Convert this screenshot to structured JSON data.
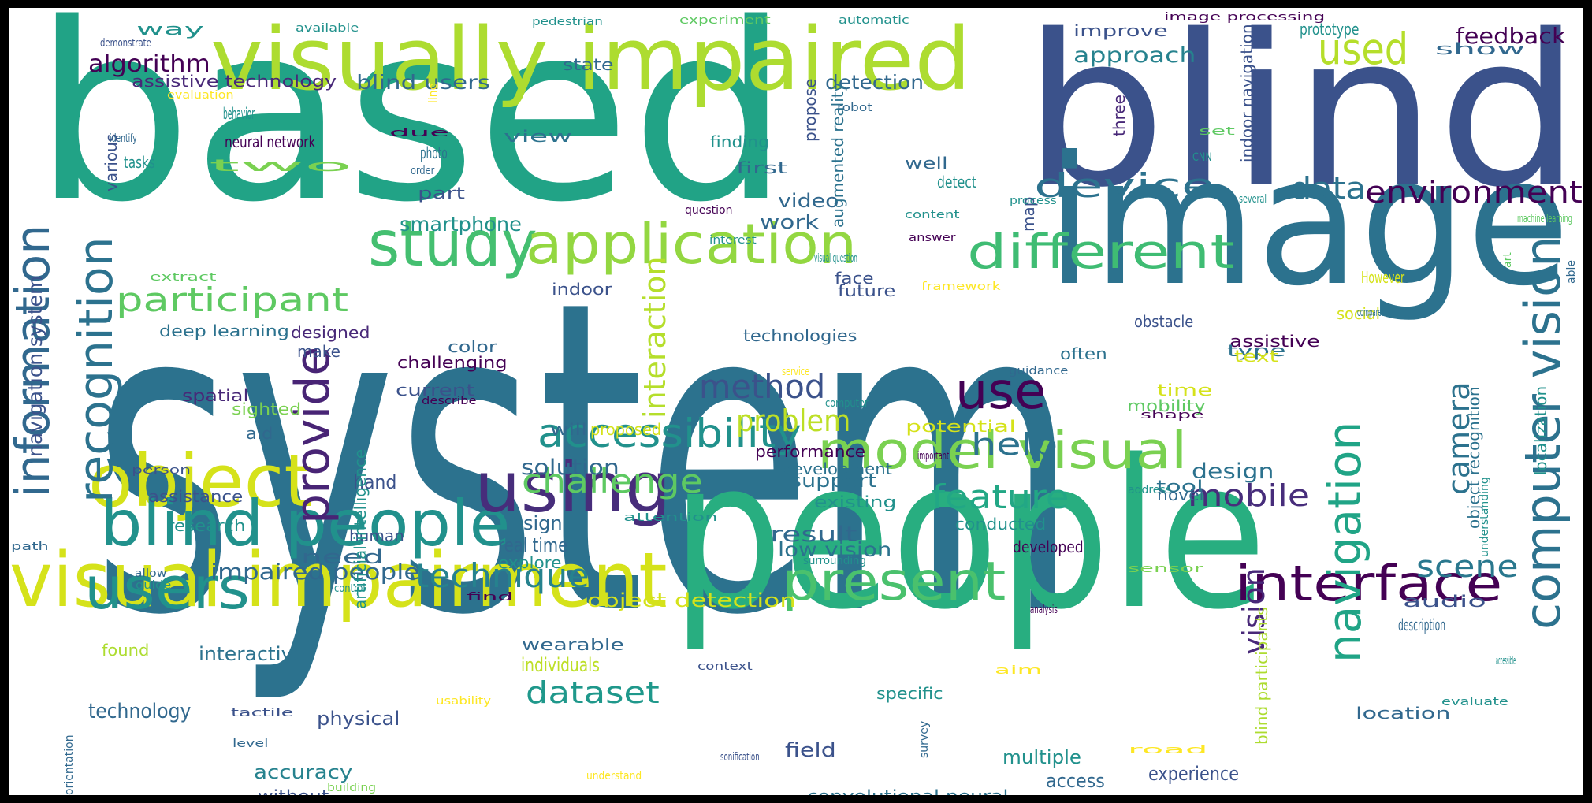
{
  "palette": [
    "#440154",
    "#472d7b",
    "#3b528b",
    "#2c728e",
    "#21918c",
    "#28ae80",
    "#5ec962",
    "#addc30",
    "#fde725"
  ],
  "words": [
    {
      "text": "system",
      "color": "#2c728e"
    },
    {
      "text": "based",
      "color": "#21a386"
    },
    {
      "text": "blind",
      "color": "#3b528b"
    },
    {
      "text": "people",
      "color": "#28ae80"
    },
    {
      "text": "image",
      "color": "#2c728e"
    },
    {
      "text": "visually impaired",
      "color": "#addc30"
    },
    {
      "text": "visual impairment",
      "color": "#d5e21a"
    },
    {
      "text": "object",
      "color": "#d5e21a"
    },
    {
      "text": "blind people",
      "color": "#21918c"
    },
    {
      "text": "using",
      "color": "#472d7b"
    },
    {
      "text": "information",
      "color": "#31688e"
    },
    {
      "text": "interface",
      "color": "#440154"
    },
    {
      "text": "study",
      "color": "#44bf70"
    },
    {
      "text": "application",
      "color": "#93d741"
    },
    {
      "text": "computer vision",
      "color": "#2c728e"
    },
    {
      "text": "model visual",
      "color": "#7ad151"
    },
    {
      "text": "present",
      "color": "#4ac16d"
    },
    {
      "text": "different",
      "color": "#3fbc73"
    },
    {
      "text": "navigation",
      "color": "#20a486"
    },
    {
      "text": "recognition",
      "color": "#2c728e"
    },
    {
      "text": "users",
      "color": "#21918c"
    },
    {
      "text": "use",
      "color": "#440154"
    },
    {
      "text": "provide",
      "color": "#482475"
    },
    {
      "text": "accessibility",
      "color": "#21918c"
    },
    {
      "text": "used",
      "color": "#b5de2b"
    },
    {
      "text": "device",
      "color": "#2c728e"
    },
    {
      "text": "participant",
      "color": "#5ec962"
    },
    {
      "text": "technique",
      "color": "#26828e"
    },
    {
      "text": "feature",
      "color": "#22a785"
    },
    {
      "text": "method",
      "color": "#3b528b"
    },
    {
      "text": "challenge",
      "color": "#5ec962"
    },
    {
      "text": "environment",
      "color": "#440154"
    },
    {
      "text": "camera",
      "color": "#2c728e"
    },
    {
      "text": "mobile",
      "color": "#472d7b"
    },
    {
      "text": "data",
      "color": "#2c728e"
    },
    {
      "text": "help",
      "color": "#2c728e"
    },
    {
      "text": "problem",
      "color": "#bddf26"
    },
    {
      "text": "dataset",
      "color": "#1f988b"
    },
    {
      "text": "scene",
      "color": "#2a788e"
    },
    {
      "text": "vision",
      "color": "#482878"
    },
    {
      "text": "interaction",
      "color": "#b5de2b"
    },
    {
      "text": "navigation system",
      "color": "#3b528b"
    },
    {
      "text": "algorithm",
      "color": "#440154"
    },
    {
      "text": "feedback",
      "color": "#440154"
    },
    {
      "text": "approach",
      "color": "#26828e"
    },
    {
      "text": "design",
      "color": "#2c728e"
    },
    {
      "text": "impaired people",
      "color": "#31688e"
    },
    {
      "text": "object detection",
      "color": "#d5e21a"
    },
    {
      "text": "low vision",
      "color": "#2c728e"
    },
    {
      "text": "detection",
      "color": "#31688e"
    },
    {
      "text": "blind users",
      "color": "#31688e"
    },
    {
      "text": "assistive technology",
      "color": "#482878"
    },
    {
      "text": "smartphone",
      "color": "#21918c"
    },
    {
      "text": "video",
      "color": "#31688e"
    },
    {
      "text": "work",
      "color": "#31688e"
    },
    {
      "text": "result",
      "color": "#31688e"
    },
    {
      "text": "solution",
      "color": "#31688e"
    },
    {
      "text": "support",
      "color": "#2c728e"
    },
    {
      "text": "technology",
      "color": "#31688e"
    },
    {
      "text": "accuracy",
      "color": "#26828e"
    },
    {
      "text": "multiple",
      "color": "#21918c"
    },
    {
      "text": "access",
      "color": "#31688e"
    },
    {
      "text": "experience",
      "color": "#3b528b"
    },
    {
      "text": "field",
      "color": "#3b528b"
    },
    {
      "text": "convolutional neural",
      "color": "#2c728e"
    },
    {
      "text": "without",
      "color": "#3b528b"
    },
    {
      "text": "physical",
      "color": "#3b528b"
    },
    {
      "text": "need",
      "color": "#31688e"
    },
    {
      "text": "individuals",
      "color": "#bddf26"
    },
    {
      "text": "wearable",
      "color": "#31688e"
    },
    {
      "text": "interactive",
      "color": "#2c728e"
    },
    {
      "text": "found",
      "color": "#addc30"
    },
    {
      "text": "explore",
      "color": "#21918c"
    },
    {
      "text": "real time",
      "color": "#31688e"
    },
    {
      "text": "sign",
      "color": "#31688e"
    },
    {
      "text": "human",
      "color": "#3b528b"
    },
    {
      "text": "research",
      "color": "#21918c"
    },
    {
      "text": "assistance",
      "color": "#3b528b"
    },
    {
      "text": "hand",
      "color": "#3b528b"
    },
    {
      "text": "aid",
      "color": "#31688e"
    },
    {
      "text": "sighted",
      "color": "#7ad151"
    },
    {
      "text": "spatial",
      "color": "#482878"
    },
    {
      "text": "current",
      "color": "#3b528b"
    },
    {
      "text": "challenging",
      "color": "#440154"
    },
    {
      "text": "color",
      "color": "#31688e"
    },
    {
      "text": "make",
      "color": "#3b528b"
    },
    {
      "text": "designed",
      "color": "#482878"
    },
    {
      "text": "deep learning",
      "color": "#2c728e"
    },
    {
      "text": "technologies",
      "color": "#31688e"
    },
    {
      "text": "future",
      "color": "#3b528b"
    },
    {
      "text": "face",
      "color": "#3b528b"
    },
    {
      "text": "indoor",
      "color": "#3b528b"
    },
    {
      "text": "proposed",
      "color": "#d5e21a"
    },
    {
      "text": "will",
      "color": "#31688e"
    },
    {
      "text": "performance",
      "color": "#440154"
    },
    {
      "text": "development",
      "color": "#2c728e"
    },
    {
      "text": "existing",
      "color": "#21918c"
    },
    {
      "text": "specific",
      "color": "#21918c"
    },
    {
      "text": "conducted",
      "color": "#21918c"
    },
    {
      "text": "developed",
      "color": "#440154"
    },
    {
      "text": "novel",
      "color": "#31688e"
    },
    {
      "text": "tool",
      "color": "#2c728e"
    },
    {
      "text": "mobility",
      "color": "#5ec962"
    },
    {
      "text": "time",
      "color": "#d5e21a"
    },
    {
      "text": "potential",
      "color": "#d5e21a"
    },
    {
      "text": "often",
      "color": "#2c728e"
    },
    {
      "text": "obstacle",
      "color": "#3b528b"
    },
    {
      "text": "assistive",
      "color": "#440154"
    },
    {
      "text": "type",
      "color": "#2c728e"
    },
    {
      "text": "text",
      "color": "#d5e21a"
    },
    {
      "text": "social",
      "color": "#d5e21a"
    },
    {
      "text": "However",
      "color": "#d5e21a"
    },
    {
      "text": "audio",
      "color": "#3b528b"
    },
    {
      "text": "description",
      "color": "#31688e"
    },
    {
      "text": "location",
      "color": "#31688e"
    },
    {
      "text": "improve",
      "color": "#3b528b"
    },
    {
      "text": "prototype",
      "color": "#21918c"
    },
    {
      "text": "show",
      "color": "#31688e"
    },
    {
      "text": "well",
      "color": "#31688e"
    },
    {
      "text": "detect",
      "color": "#21918c"
    },
    {
      "text": "finding",
      "color": "#21918c"
    },
    {
      "text": "view",
      "color": "#2c728e"
    },
    {
      "text": "first",
      "color": "#31688e"
    },
    {
      "text": "state",
      "color": "#31688e"
    },
    {
      "text": "way",
      "color": "#21918c"
    },
    {
      "text": "behavior",
      "color": "#21918c"
    },
    {
      "text": "neural network",
      "color": "#440154"
    },
    {
      "text": "two",
      "color": "#7ad151"
    },
    {
      "text": "tasks",
      "color": "#21918c"
    },
    {
      "text": "part",
      "color": "#3b528b"
    },
    {
      "text": "photo",
      "color": "#2c728e"
    },
    {
      "text": "three",
      "color": "#482878"
    },
    {
      "text": "augmented reality",
      "color": "#2c728e"
    },
    {
      "text": "indoor navigation",
      "color": "#3b528b"
    },
    {
      "text": "object recognition",
      "color": "#2c728e"
    },
    {
      "text": "localization",
      "color": "#21918c"
    },
    {
      "text": "blind participants",
      "color": "#addc30"
    },
    {
      "text": "propose",
      "color": "#3b528b"
    },
    {
      "text": "various",
      "color": "#3b528b"
    },
    {
      "text": "map",
      "color": "#3b528b"
    },
    {
      "text": "artificial intelligence",
      "color": "#21918c"
    },
    {
      "text": "image processing",
      "color": "#440154"
    },
    {
      "text": "experiment",
      "color": "#5ec962"
    },
    {
      "text": "pedestrian",
      "color": "#21918c"
    },
    {
      "text": "automatic",
      "color": "#21918c"
    },
    {
      "text": "available",
      "color": "#21918c"
    },
    {
      "text": "demonstrate",
      "color": "#3b528b"
    },
    {
      "text": "evaluation",
      "color": "#fde725"
    },
    {
      "text": "line",
      "color": "#fde725"
    },
    {
      "text": "identify",
      "color": "#31688e"
    },
    {
      "text": "due",
      "color": "#440154"
    },
    {
      "text": "order",
      "color": "#31688e"
    },
    {
      "text": "robot",
      "color": "#31688e"
    },
    {
      "text": "set",
      "color": "#5ec962"
    },
    {
      "text": "CNN",
      "color": "#21918c"
    },
    {
      "text": "several",
      "color": "#21918c"
    },
    {
      "text": "process",
      "color": "#21918c"
    },
    {
      "text": "question",
      "color": "#440154"
    },
    {
      "text": "content",
      "color": "#21918c"
    },
    {
      "text": "interest",
      "color": "#21918c"
    },
    {
      "text": "answer",
      "color": "#440154"
    },
    {
      "text": "visual question",
      "color": "#21918c"
    },
    {
      "text": "framework",
      "color": "#fde725"
    },
    {
      "text": "extract",
      "color": "#5ec962"
    },
    {
      "text": "machine learning",
      "color": "#5ec962"
    },
    {
      "text": "able",
      "color": "#31688e"
    },
    {
      "text": "compared",
      "color": "#2c728e"
    },
    {
      "text": "art",
      "color": "#5ec962"
    },
    {
      "text": "service",
      "color": "#fde725"
    },
    {
      "text": "computer",
      "color": "#21918c"
    },
    {
      "text": "describe",
      "color": "#440154"
    },
    {
      "text": "guidance",
      "color": "#31688e"
    },
    {
      "text": "shape",
      "color": "#440154"
    },
    {
      "text": "important",
      "color": "#440154"
    },
    {
      "text": "person",
      "color": "#3b528b"
    },
    {
      "text": "address",
      "color": "#21918c"
    },
    {
      "text": "understanding",
      "color": "#21918c"
    },
    {
      "text": "attention",
      "color": "#21918c"
    },
    {
      "text": "surrounding",
      "color": "#21918c"
    },
    {
      "text": "sensor",
      "color": "#7ad151"
    },
    {
      "text": "path",
      "color": "#31688e"
    },
    {
      "text": "allow",
      "color": "#31688e"
    },
    {
      "text": "guide",
      "color": "#21918c"
    },
    {
      "text": "control",
      "color": "#21918c"
    },
    {
      "text": "find",
      "color": "#440154"
    },
    {
      "text": "analysis",
      "color": "#440154"
    },
    {
      "text": "context",
      "color": "#3b528b"
    },
    {
      "text": "aim",
      "color": "#fde725"
    },
    {
      "text": "accessible",
      "color": "#21918c"
    },
    {
      "text": "evaluate",
      "color": "#21918c"
    },
    {
      "text": "usability",
      "color": "#fde725"
    },
    {
      "text": "tactile",
      "color": "#3b528b"
    },
    {
      "text": "level",
      "color": "#31688e"
    },
    {
      "text": "survey",
      "color": "#31688e"
    },
    {
      "text": "sonification",
      "color": "#3b528b"
    },
    {
      "text": "road",
      "color": "#fde725"
    },
    {
      "text": "orientation",
      "color": "#31688e"
    },
    {
      "text": "building",
      "color": "#7ad151"
    },
    {
      "text": "understand",
      "color": "#fde725"
    }
  ]
}
